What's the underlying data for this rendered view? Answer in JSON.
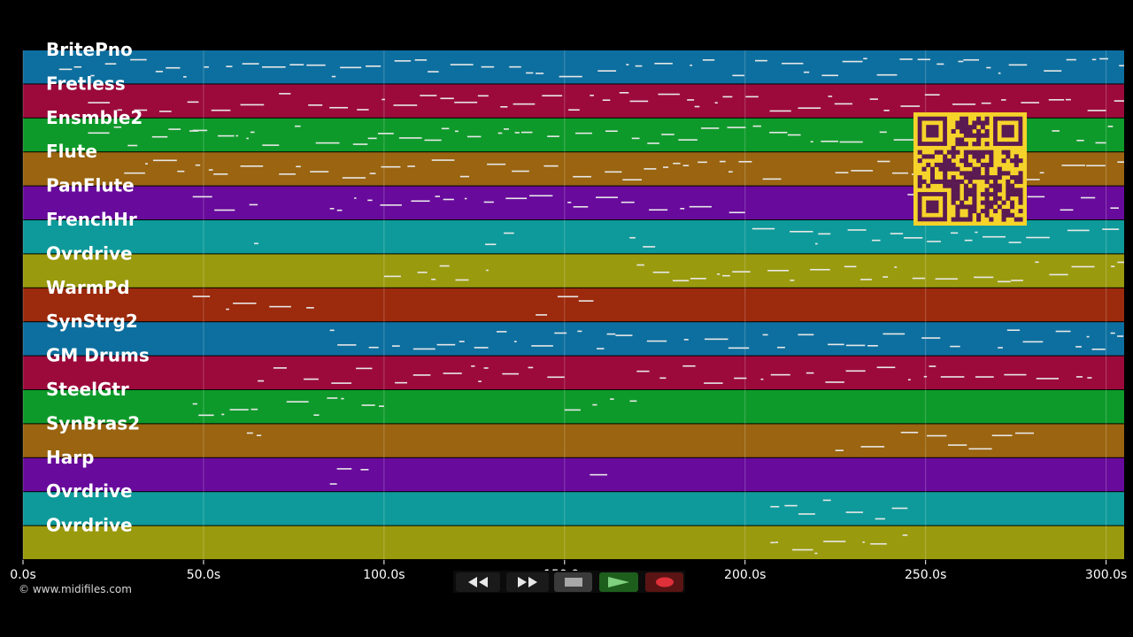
{
  "tracks": [
    {
      "label": "BritePno",
      "color": "#0d6f9f"
    },
    {
      "label": "Fretless",
      "color": "#9c0a3c"
    },
    {
      "label": "Ensmble2",
      "color": "#0e9a2a"
    },
    {
      "label": "Flute",
      "color": "#9a6410"
    },
    {
      "label": "PanFlute",
      "color": "#680a9c"
    },
    {
      "label": "FrenchHr",
      "color": "#0e9a9a"
    },
    {
      "label": "Ovrdrive",
      "color": "#9a9a0e"
    },
    {
      "label": "WarmPd",
      "color": "#9c2a0c"
    },
    {
      "label": "SynStrg2",
      "color": "#0d6f9f"
    },
    {
      "label": "GM Drums",
      "color": "#9c0a3c"
    },
    {
      "label": "SteelGtr",
      "color": "#0e9a2a"
    },
    {
      "label": "SynBras2",
      "color": "#9a6410"
    },
    {
      "label": "Harp",
      "color": "#680a9c"
    },
    {
      "label": "Ovrdrive",
      "color": "#0e9a9a"
    },
    {
      "label": "Ovrdrive",
      "color": "#9a9a0e"
    }
  ],
  "timeline": {
    "start_seconds": 0,
    "end_seconds": 305,
    "ticks": [
      {
        "seconds": 0,
        "label": "0.0s"
      },
      {
        "seconds": 50,
        "label": "50.0s"
      },
      {
        "seconds": 100,
        "label": "100.0s"
      },
      {
        "seconds": 150,
        "label": "150.0s"
      },
      {
        "seconds": 200,
        "label": "200.0s"
      },
      {
        "seconds": 250,
        "label": "250.0s"
      },
      {
        "seconds": 300,
        "label": "300.0s"
      }
    ]
  },
  "copyright": "© www.midifiles.com",
  "transport": {
    "rewind_icon": "rewind-icon",
    "fast_forward_icon": "fast-forward-icon",
    "stop_icon": "stop-icon",
    "play_icon": "play-icon",
    "record_icon": "record-icon"
  },
  "qr_code": {
    "color": "#f6d32a",
    "module_color": "#5a1a52"
  }
}
